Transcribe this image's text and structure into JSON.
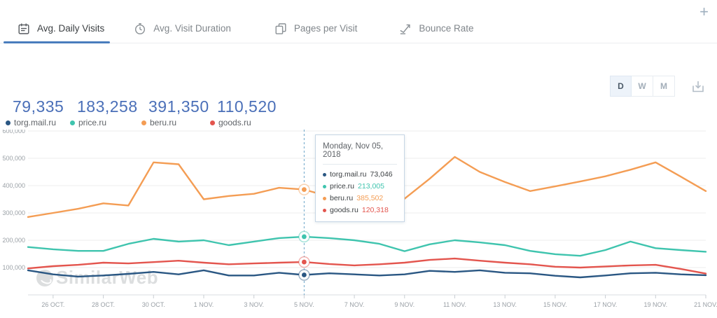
{
  "header": {
    "tabs": [
      {
        "label": "Avg. Daily Visits",
        "icon": "calendar-icon",
        "active": true
      },
      {
        "label": "Avg. Visit Duration",
        "icon": "clock-icon",
        "active": false
      },
      {
        "label": "Pages per Visit",
        "icon": "pages-icon",
        "active": false
      },
      {
        "label": "Bounce Rate",
        "icon": "bounce-icon",
        "active": false
      }
    ],
    "add_button": "+"
  },
  "controls": {
    "granularity": [
      {
        "label": "D",
        "selected": true
      },
      {
        "label": "W",
        "selected": false
      },
      {
        "label": "M",
        "selected": false
      }
    ]
  },
  "metrics": [
    {
      "value": "79,335",
      "site": "torg.mail.ru",
      "color": "#2a5783"
    },
    {
      "value": "183,258",
      "site": "price.ru",
      "color": "#3fc4ae"
    },
    {
      "value": "391,350",
      "site": "beru.ru",
      "color": "#f49d54"
    },
    {
      "value": "110,520",
      "site": "goods.ru",
      "color": "#e3554e"
    }
  ],
  "tooltip": {
    "title": "Monday, Nov 05, 2018",
    "rows": [
      {
        "site": "torg.mail.ru",
        "value": "73,046",
        "dot": "#2a5783",
        "value_color": "#3c4043"
      },
      {
        "site": "price.ru",
        "value": "213,005",
        "dot": "#3fc4ae",
        "value_color": "#3fc4ae"
      },
      {
        "site": "beru.ru",
        "value": "385,502",
        "dot": "#f49d54",
        "value_color": "#f49d54"
      },
      {
        "site": "goods.ru",
        "value": "120,318",
        "dot": "#e3554e",
        "value_color": "#e3554e"
      }
    ]
  },
  "watermark": "SimilarWeb",
  "chart_data": {
    "type": "line",
    "title": "Avg. Daily Visits",
    "x": [
      "25 Oct",
      "26 Oct",
      "27 Oct",
      "28 Oct",
      "29 Oct",
      "30 Oct",
      "31 Oct",
      "1 Nov",
      "2 Nov",
      "3 Nov",
      "4 Nov",
      "5 Nov",
      "6 Nov",
      "7 Nov",
      "8 Nov",
      "9 Nov",
      "10 Nov",
      "11 Nov",
      "12 Nov",
      "13 Nov",
      "14 Nov",
      "15 Nov",
      "16 Nov",
      "17 Nov",
      "18 Nov",
      "19 Nov",
      "20 Nov",
      "21 Nov"
    ],
    "x_tick_indices": [
      1,
      3,
      5,
      7,
      9,
      11,
      13,
      15,
      17,
      19,
      21,
      23,
      25,
      27
    ],
    "x_tick_labels": [
      "26 OCT.",
      "28 OCT.",
      "30 OCT.",
      "1 NOV.",
      "3 NOV.",
      "5 NOV.",
      "7 NOV.",
      "9 NOV.",
      "11 NOV.",
      "13 NOV.",
      "15 NOV.",
      "17 NOV.",
      "19 NOV.",
      "21 NOV."
    ],
    "y_ticks": [
      100000,
      200000,
      300000,
      400000,
      500000,
      600000
    ],
    "y_tick_labels": [
      "100,000",
      "200,000",
      "300,000",
      "400,000",
      "500,000",
      "600,000"
    ],
    "ylim": [
      0,
      605000
    ],
    "grid": true,
    "legend_position": "top-left",
    "hover_index": 11,
    "hover_line_color": "#6aa5c8",
    "series": [
      {
        "name": "torg.mail.ru",
        "color": "#2a5783",
        "values": [
          90000,
          75000,
          67000,
          71000,
          77000,
          84000,
          75000,
          90000,
          71000,
          71000,
          81000,
          73046,
          79000,
          75000,
          71000,
          75000,
          88000,
          84000,
          90000,
          81000,
          79000,
          70000,
          64000,
          71000,
          79000,
          81000,
          75000,
          72000
        ]
      },
      {
        "name": "price.ru",
        "color": "#3fc4ae",
        "values": [
          175000,
          167000,
          161000,
          161000,
          187000,
          205000,
          195000,
          200000,
          182000,
          195000,
          208000,
          213005,
          208000,
          200000,
          187000,
          160000,
          185000,
          200000,
          192000,
          182000,
          161000,
          149000,
          143000,
          164000,
          195000,
          171000,
          164000,
          158000
        ]
      },
      {
        "name": "beru.ru",
        "color": "#f49d54",
        "values": [
          285000,
          300000,
          315000,
          335000,
          327000,
          485000,
          478000,
          350000,
          362000,
          370000,
          392000,
          385502,
          360000,
          331000,
          344000,
          352000,
          425000,
          505000,
          450000,
          413000,
          380000,
          397000,
          415000,
          434000,
          458000,
          485000,
          433000,
          380000
        ]
      },
      {
        "name": "goods.ru",
        "color": "#e3554e",
        "values": [
          97000,
          105000,
          110000,
          118000,
          115000,
          120000,
          125000,
          118000,
          112000,
          115000,
          118000,
          120318,
          113000,
          108000,
          112000,
          118000,
          128000,
          133000,
          125000,
          118000,
          112000,
          103000,
          100000,
          104000,
          108000,
          110000,
          95000,
          78000
        ]
      }
    ]
  }
}
